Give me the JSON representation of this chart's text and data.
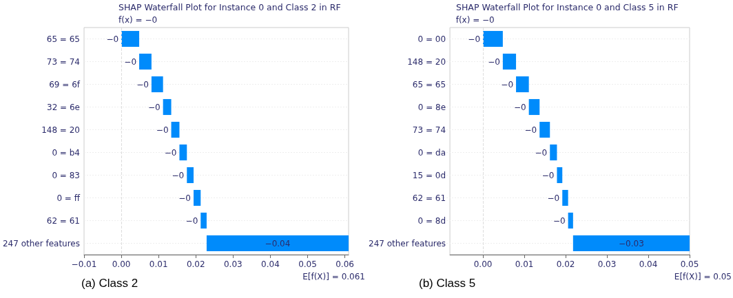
{
  "chart_data": [
    {
      "type": "bar",
      "orientation": "horizontal",
      "title": "SHAP Waterfall Plot for Instance 0 and Class 2 in RF",
      "categories": [
        "65 = 65",
        "73 = 74",
        "69 = 6f",
        "32 = 6e",
        "148 = 20",
        "0 = b4",
        "0 = 83",
        "0 = ff",
        "62 = 61",
        "247 other features"
      ],
      "base": [
        0.0048,
        0.0081,
        0.0112,
        0.0134,
        0.0156,
        0.0176,
        0.0194,
        0.0213,
        0.0229,
        0.061
      ],
      "values": [
        -0.0048,
        -0.0033,
        -0.0031,
        -0.0022,
        -0.0022,
        -0.002,
        -0.0018,
        -0.0019,
        -0.0016,
        -0.0381
      ],
      "value_labels": [
        "−0",
        "−0",
        "−0",
        "−0",
        "−0",
        "−0",
        "−0",
        "−0",
        "−0",
        "−0.04"
      ],
      "color": "#008bfb",
      "xlim": [
        -0.01,
        0.061
      ],
      "xticks": [
        {
          "value": -0.01,
          "label": "−0.01"
        },
        {
          "value": 0,
          "label": "0.00"
        },
        {
          "value": 0.01,
          "label": "0.01"
        },
        {
          "value": 0.02,
          "label": "0.02"
        },
        {
          "value": 0.03,
          "label": "0.03"
        },
        {
          "value": 0.04,
          "label": "0.04"
        },
        {
          "value": 0.05,
          "label": "0.05"
        },
        {
          "value": 0.06,
          "label": "0.06"
        }
      ],
      "grid": "y",
      "ref_lines": [
        {
          "axis": "x",
          "value": 0,
          "label": null,
          "line_style": "dashed"
        }
      ],
      "annotations": [
        "f(x) = −0",
        "E[f(X)] = 0.061",
        "(a) Class 2"
      ]
    },
    {
      "type": "bar",
      "orientation": "horizontal",
      "title": "SHAP Waterfall Plot for Instance 0 and Class 5 in RF",
      "categories": [
        "0 = 00",
        "148 = 20",
        "65 = 65",
        "0 = 8e",
        "73 = 74",
        "0 = da",
        "15 = 0d",
        "62 = 61",
        "0 = 8d",
        "247 other features"
      ],
      "base": [
        0.0048,
        0.008,
        0.0111,
        0.0137,
        0.0162,
        0.0179,
        0.0192,
        0.0206,
        0.0218,
        0.05
      ],
      "values": [
        -0.0048,
        -0.0032,
        -0.0031,
        -0.0026,
        -0.0025,
        -0.0017,
        -0.0013,
        -0.0014,
        -0.0012,
        -0.0282
      ],
      "value_labels": [
        "−0",
        "−0",
        "−0",
        "−0",
        "−0",
        "−0",
        "−0",
        "−0",
        "−0",
        "−0.03"
      ],
      "color": "#008bfb",
      "xlim": [
        -0.008,
        0.05
      ],
      "xticks": [
        {
          "value": 0,
          "label": "0.00"
        },
        {
          "value": 0.01,
          "label": "0.01"
        },
        {
          "value": 0.02,
          "label": "0.02"
        },
        {
          "value": 0.03,
          "label": "0.03"
        },
        {
          "value": 0.04,
          "label": "0.04"
        },
        {
          "value": 0.05,
          "label": "0.05"
        }
      ],
      "grid": "y",
      "ref_lines": [
        {
          "axis": "x",
          "value": 0,
          "label": null,
          "line_style": "dashed"
        }
      ],
      "annotations": [
        "f(x) = −0",
        "E[f(X)] = 0.05",
        "(b) Class 5"
      ]
    }
  ]
}
